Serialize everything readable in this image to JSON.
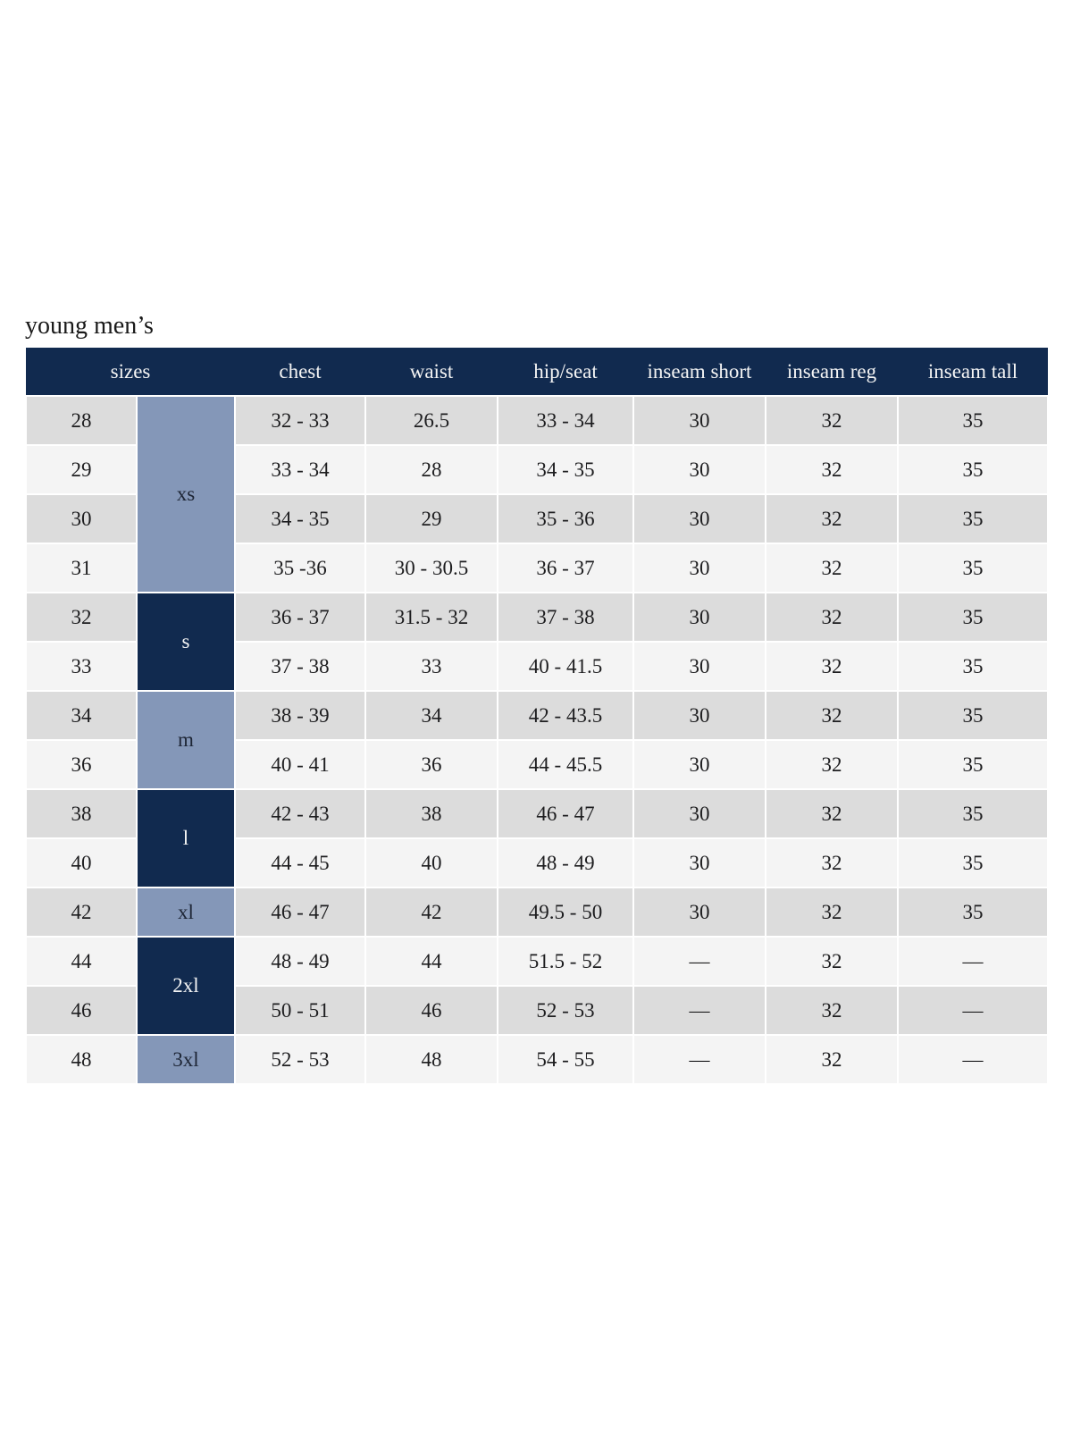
{
  "page": {
    "title": "young men’s"
  },
  "colors": {
    "header_bg": "#112a4f",
    "header_text": "#f5f5f5",
    "group_navy": "#112a4f",
    "group_navy_text": "#f5f5f5",
    "group_steel": "#8497b8",
    "group_steel_text": "#1d2535",
    "row_gray": "#dcdcdc",
    "row_light": "#f4f4f4",
    "cell_text": "#1d1d1f",
    "title_text": "#1a1a1a",
    "page_bg": "#ffffff"
  },
  "table": {
    "columns": [
      "sizes",
      "chest",
      "waist",
      "hip/seat",
      "inseam short",
      "inseam reg",
      "inseam tall"
    ],
    "size_groups": [
      {
        "label": "xs",
        "span": 4,
        "style": "steel"
      },
      {
        "label": "s",
        "span": 2,
        "style": "navy"
      },
      {
        "label": "m",
        "span": 2,
        "style": "steel"
      },
      {
        "label": "l",
        "span": 2,
        "style": "navy"
      },
      {
        "label": "xl",
        "span": 1,
        "style": "steel"
      },
      {
        "label": "2xl",
        "span": 2,
        "style": "navy"
      },
      {
        "label": "3xl",
        "span": 1,
        "style": "steel"
      }
    ],
    "rows": [
      {
        "size": "28",
        "chest": "32 - 33",
        "waist": "26.5",
        "hip_seat": "33 - 34",
        "inseam_short": "30",
        "inseam_reg": "32",
        "inseam_tall": "35"
      },
      {
        "size": "29",
        "chest": "33 - 34",
        "waist": "28",
        "hip_seat": "34 - 35",
        "inseam_short": "30",
        "inseam_reg": "32",
        "inseam_tall": "35"
      },
      {
        "size": "30",
        "chest": "34 - 35",
        "waist": "29",
        "hip_seat": "35 - 36",
        "inseam_short": "30",
        "inseam_reg": "32",
        "inseam_tall": "35"
      },
      {
        "size": "31",
        "chest": "35 -36",
        "waist": "30 - 30.5",
        "hip_seat": "36 - 37",
        "inseam_short": "30",
        "inseam_reg": "32",
        "inseam_tall": "35"
      },
      {
        "size": "32",
        "chest": "36 - 37",
        "waist": "31.5 - 32",
        "hip_seat": "37 - 38",
        "inseam_short": "30",
        "inseam_reg": "32",
        "inseam_tall": "35"
      },
      {
        "size": "33",
        "chest": "37 - 38",
        "waist": "33",
        "hip_seat": "40 - 41.5",
        "inseam_short": "30",
        "inseam_reg": "32",
        "inseam_tall": "35"
      },
      {
        "size": "34",
        "chest": "38 - 39",
        "waist": "34",
        "hip_seat": "42 - 43.5",
        "inseam_short": "30",
        "inseam_reg": "32",
        "inseam_tall": "35"
      },
      {
        "size": "36",
        "chest": "40 - 41",
        "waist": "36",
        "hip_seat": "44 - 45.5",
        "inseam_short": "30",
        "inseam_reg": "32",
        "inseam_tall": "35"
      },
      {
        "size": "38",
        "chest": "42 - 43",
        "waist": "38",
        "hip_seat": "46 - 47",
        "inseam_short": "30",
        "inseam_reg": "32",
        "inseam_tall": "35"
      },
      {
        "size": "40",
        "chest": "44 - 45",
        "waist": "40",
        "hip_seat": "48 - 49",
        "inseam_short": "30",
        "inseam_reg": "32",
        "inseam_tall": "35"
      },
      {
        "size": "42",
        "chest": "46 - 47",
        "waist": "42",
        "hip_seat": "49.5 - 50",
        "inseam_short": "30",
        "inseam_reg": "32",
        "inseam_tall": "35"
      },
      {
        "size": "44",
        "chest": "48 - 49",
        "waist": "44",
        "hip_seat": "51.5 - 52",
        "inseam_short": "—",
        "inseam_reg": "32",
        "inseam_tall": "—"
      },
      {
        "size": "46",
        "chest": "50 - 51",
        "waist": "46",
        "hip_seat": "52 - 53",
        "inseam_short": "—",
        "inseam_reg": "32",
        "inseam_tall": "—"
      },
      {
        "size": "48",
        "chest": "52 - 53",
        "waist": "48",
        "hip_seat": "54 - 55",
        "inseam_short": "—",
        "inseam_reg": "32",
        "inseam_tall": "—"
      }
    ]
  }
}
